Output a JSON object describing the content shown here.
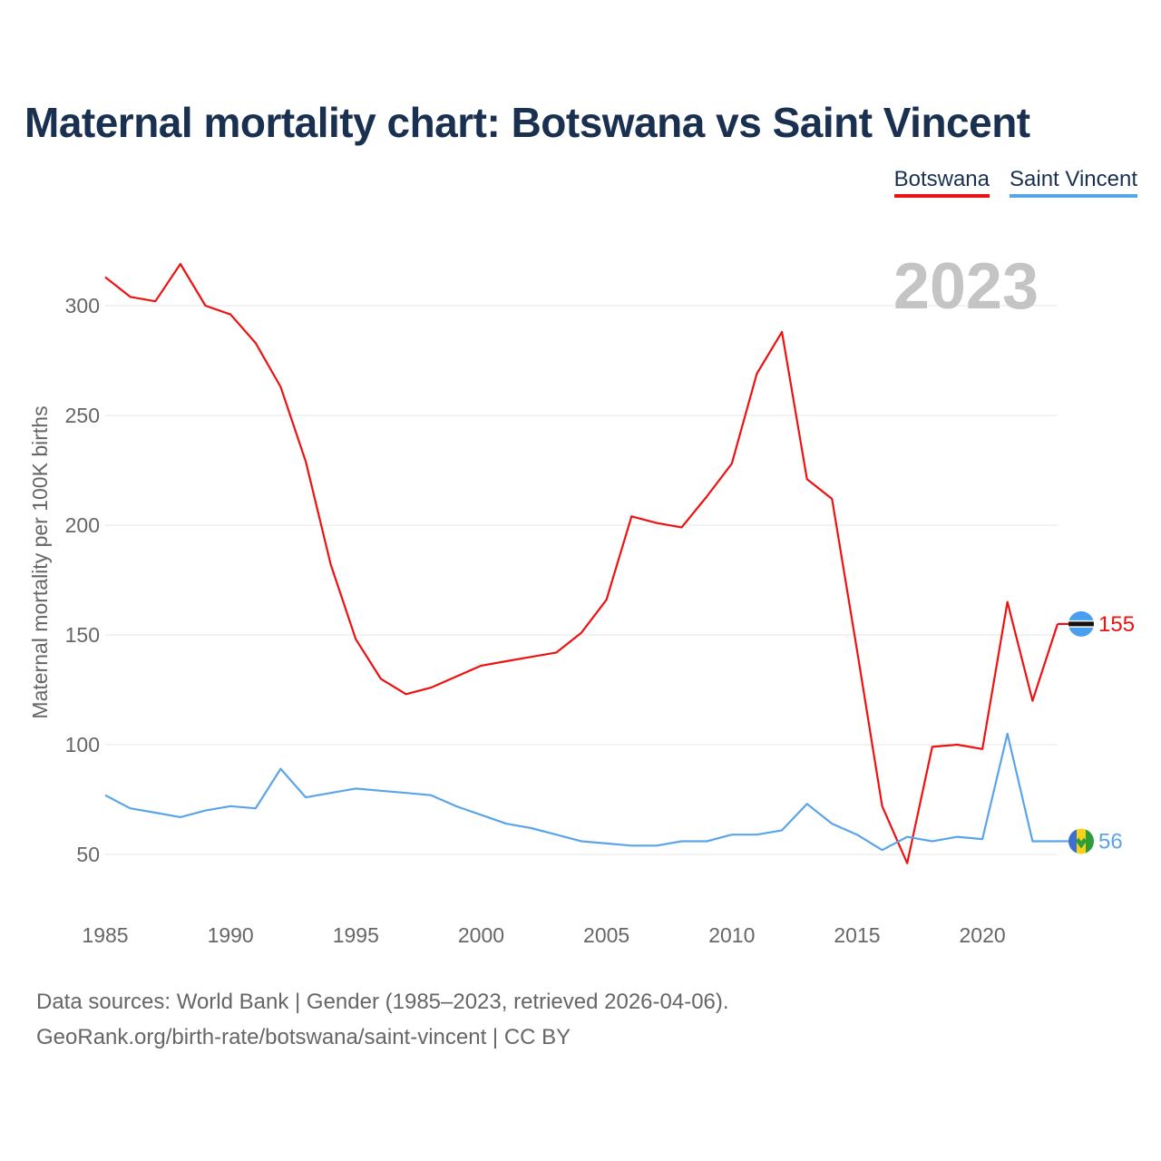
{
  "title": "Maternal mortality chart: Botswana vs Saint Vincent",
  "legend": [
    {
      "label": "Botswana",
      "color": "#ee1111"
    },
    {
      "label": "Saint Vincent",
      "color": "#5aa5ea"
    }
  ],
  "year_watermark": "2023",
  "footer": {
    "line1": "Data sources: World Bank | Gender (1985–2023, retrieved 2026-04-06).",
    "line2": "GeoRank.org/birth-rate/botswana/saint-vincent | CC BY"
  },
  "chart_data": {
    "type": "line",
    "title": "Maternal mortality chart: Botswana vs Saint Vincent",
    "xlabel": "",
    "ylabel": "Maternal mortality per 100K births",
    "xlim": [
      1985,
      2023
    ],
    "ylim": [
      30,
      320
    ],
    "x_ticks": [
      1985,
      1990,
      1995,
      2000,
      2005,
      2010,
      2015,
      2020
    ],
    "y_ticks": [
      50,
      100,
      150,
      200,
      250,
      300
    ],
    "grid": true,
    "x": [
      1985,
      1986,
      1987,
      1988,
      1989,
      1990,
      1991,
      1992,
      1993,
      1994,
      1995,
      1996,
      1997,
      1998,
      1999,
      2000,
      2001,
      2002,
      2003,
      2004,
      2005,
      2006,
      2007,
      2008,
      2009,
      2010,
      2011,
      2012,
      2013,
      2014,
      2015,
      2016,
      2017,
      2018,
      2019,
      2020,
      2021,
      2022,
      2023
    ],
    "series": [
      {
        "name": "Botswana",
        "color": "#ee1111",
        "end_label": "155",
        "values": [
          313,
          304,
          302,
          319,
          300,
          296,
          283,
          263,
          229,
          182,
          148,
          130,
          123,
          126,
          131,
          136,
          138,
          140,
          142,
          151,
          166,
          204,
          201,
          199,
          213,
          228,
          269,
          288,
          221,
          212,
          143,
          72,
          46,
          99,
          100,
          98,
          165,
          120,
          155
        ]
      },
      {
        "name": "Saint Vincent",
        "color": "#5aa5ea",
        "end_label": "56",
        "values": [
          77,
          71,
          69,
          67,
          70,
          72,
          71,
          89,
          76,
          78,
          80,
          79,
          78,
          77,
          72,
          68,
          64,
          62,
          59,
          56,
          55,
          54,
          54,
          56,
          56,
          59,
          59,
          61,
          73,
          64,
          59,
          52,
          58,
          56,
          58,
          57,
          105,
          56,
          56
        ]
      }
    ]
  }
}
